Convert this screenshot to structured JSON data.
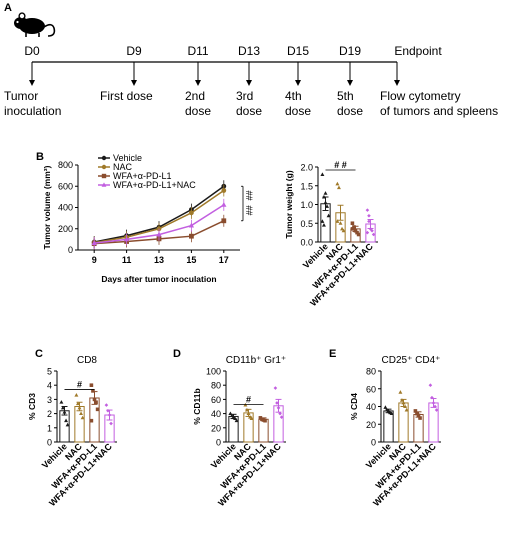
{
  "panel_a": {
    "label": "A",
    "mouse_icon": "mouse-icon",
    "days": [
      {
        "day": "D0",
        "event": [
          "Tumor",
          "inoculation"
        ]
      },
      {
        "day": "D9",
        "event": [
          "First dose"
        ]
      },
      {
        "day": "D11",
        "event": [
          "2nd",
          "dose"
        ]
      },
      {
        "day": "D13",
        "event": [
          "3rd",
          "dose"
        ]
      },
      {
        "day": "D15",
        "event": [
          "4th",
          "dose"
        ]
      },
      {
        "day": "D19",
        "event": [
          "5th",
          "dose"
        ]
      }
    ],
    "endpoint": "Endpoint",
    "endpoint_event": [
      "Flow cytometry",
      "of tumors and spleens"
    ]
  },
  "colors": {
    "vehicle": "#1a1a1a",
    "nac": "#a07a2a",
    "wfa": "#8a4d2e",
    "combo": "#c25fe0"
  },
  "chart_data": [
    {
      "panel": "B",
      "type": "line",
      "title": "",
      "xlabel": "Days after tumor inoculation",
      "ylabel": "Tumor volume (mm³)",
      "x": [
        9,
        11,
        13,
        15,
        17
      ],
      "xlim": [
        8,
        18
      ],
      "ylim": [
        0,
        800
      ],
      "yticks": [
        0,
        200,
        400,
        600,
        800
      ],
      "legend": "top-left",
      "series": [
        {
          "name": "Vehicle",
          "color": "#1a1a1a",
          "marker": "circle",
          "values": [
            75,
            135,
            215,
            380,
            600
          ]
        },
        {
          "name": "NAC",
          "color": "#a07a2a",
          "marker": "circle",
          "values": [
            70,
            120,
            200,
            350,
            560
          ]
        },
        {
          "name": "WFA+α-PD-L1",
          "color": "#8a4d2e",
          "marker": "square",
          "values": [
            60,
            80,
            105,
            130,
            275
          ]
        },
        {
          "name": "WFA+α-PD-L1+NAC",
          "color": "#c25fe0",
          "marker": "triangle",
          "values": [
            65,
            100,
            145,
            230,
            425
          ]
        }
      ],
      "annotations": [
        "##",
        "##"
      ]
    },
    {
      "panel": "B",
      "type": "bar",
      "title": "",
      "ylabel": "Tumor weight (g)",
      "categories": [
        "Vehicle",
        "NAC",
        "WFA+α-PD-L1",
        "WFA+α-PD-L1+NAC"
      ],
      "values": [
        1.02,
        0.78,
        0.35,
        0.48
      ],
      "errors": [
        0.18,
        0.2,
        0.07,
        0.12
      ],
      "ylim": [
        0,
        2.0
      ],
      "yticks": [
        "0.0",
        "0.5",
        "1.0",
        "1.5",
        "2.0"
      ],
      "points": [
        [
          1.8,
          1.2,
          1.05,
          0.95,
          0.7,
          0.55,
          0.45,
          1.3
        ],
        [
          1.55,
          1.45,
          0.5,
          0.35,
          0.3,
          0.55
        ],
        [
          0.5,
          0.4,
          0.3,
          0.25,
          0.2,
          0.35
        ],
        [
          0.85,
          0.7,
          0.35,
          0.3,
          0.2,
          0.25,
          0.55
        ]
      ],
      "annotation": "# #"
    },
    {
      "panel": "C",
      "type": "bar",
      "title": "CD8",
      "ylabel": "% CD3",
      "categories": [
        "Vehicle",
        "NAC",
        "WFA+α-PD-L1",
        "WFA+α-PD-L1+NAC"
      ],
      "values": [
        2.2,
        2.5,
        3.1,
        1.9
      ],
      "errors": [
        0.3,
        0.3,
        0.45,
        0.35
      ],
      "ylim": [
        0,
        5
      ],
      "yticks": [
        "0",
        "1",
        "2",
        "3",
        "4",
        "5"
      ],
      "points": [
        [
          2.8,
          2.4,
          2.1,
          1.5,
          1.2
        ],
        [
          3.3,
          2.7,
          2.4,
          2.0,
          1.7
        ],
        [
          4.0,
          3.6,
          3.0,
          2.8,
          2.3,
          1.5
        ],
        [
          2.6,
          2.2,
          1.9,
          1.3
        ]
      ],
      "annotation": "#"
    },
    {
      "panel": "D",
      "type": "bar",
      "title": "CD11b⁺ Gr1⁺",
      "ylabel": "% CD11b",
      "categories": [
        "Vehicle",
        "NAC",
        "WFA+α-PD-L1",
        "WFA+α-PD-L1+NAC"
      ],
      "values": [
        36,
        41,
        32,
        51
      ],
      "errors": [
        3,
        5,
        2,
        9
      ],
      "ylim": [
        0,
        100
      ],
      "yticks": [
        "0",
        "20",
        "40",
        "60",
        "80",
        "100"
      ],
      "points": [
        [
          40,
          37,
          35,
          33,
          30
        ],
        [
          52,
          45,
          40,
          35,
          33
        ],
        [
          34,
          32,
          31,
          30
        ],
        [
          76,
          55,
          48,
          40,
          35
        ]
      ],
      "annotation": "#"
    },
    {
      "panel": "E",
      "type": "bar",
      "title": "CD25⁺ CD4⁺",
      "ylabel": "% CD4",
      "categories": [
        "Vehicle",
        "NAC",
        "WFA+α-PD-L1",
        "WFA+α-PD-L1+NAC"
      ],
      "values": [
        35,
        44,
        31,
        44
      ],
      "errors": [
        2,
        4,
        3,
        5
      ],
      "ylim": [
        0,
        80
      ],
      "yticks": [
        "0",
        "20",
        "40",
        "60",
        "80"
      ],
      "points": [
        [
          39,
          36,
          35,
          33,
          32
        ],
        [
          56,
          47,
          44,
          40,
          36
        ],
        [
          35,
          32,
          30,
          27
        ],
        [
          64,
          50,
          44,
          40,
          36
        ]
      ]
    }
  ]
}
